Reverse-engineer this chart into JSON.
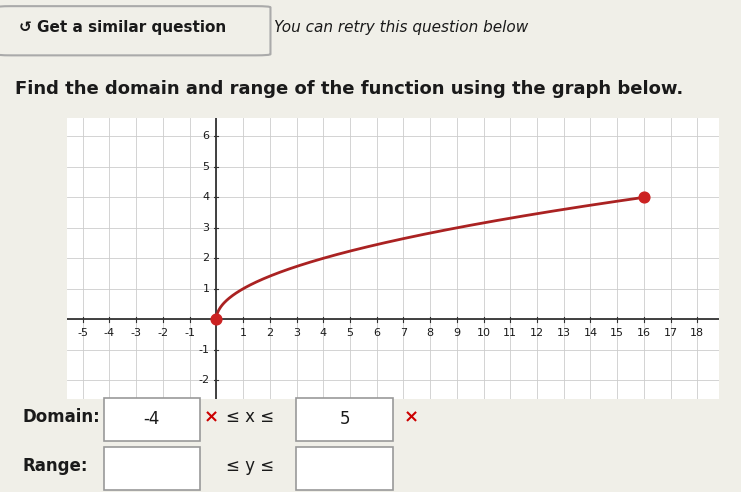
{
  "title": "Find the domain and range of the function using the graph below.",
  "header_text": "↺ Get a similar question",
  "header_subtext": "You can retry this question below",
  "x_start": 0,
  "x_end": 16,
  "y_start": 0,
  "y_end": 4,
  "curve_color": "#aa2222",
  "dot_color": "#cc2222",
  "dot_size": 60,
  "grid_color": "#cccccc",
  "grid_lw": 0.6,
  "axis_color": "#555555",
  "background_color": "#f0efe8",
  "header_bg": "#e8e6d8",
  "panel_color": "#ffffff",
  "x_axis_ticks": [
    -5,
    -4,
    -3,
    -2,
    -1,
    1,
    2,
    3,
    4,
    5,
    6,
    7,
    8,
    9,
    10,
    11,
    12,
    13,
    14,
    15,
    16,
    17,
    18
  ],
  "y_axis_ticks": [
    -2,
    -1,
    1,
    2,
    3,
    4,
    5,
    6
  ],
  "xlim": [
    -5.6,
    18.8
  ],
  "ylim": [
    -2.6,
    6.6
  ],
  "domain_label": "Domain:",
  "domain_val1": "-4",
  "domain_val2": "5",
  "range_label": "Range:",
  "x_mark": "×",
  "font_color": "#1a1a1a",
  "tick_fontsize": 8,
  "label_fontsize": 12
}
